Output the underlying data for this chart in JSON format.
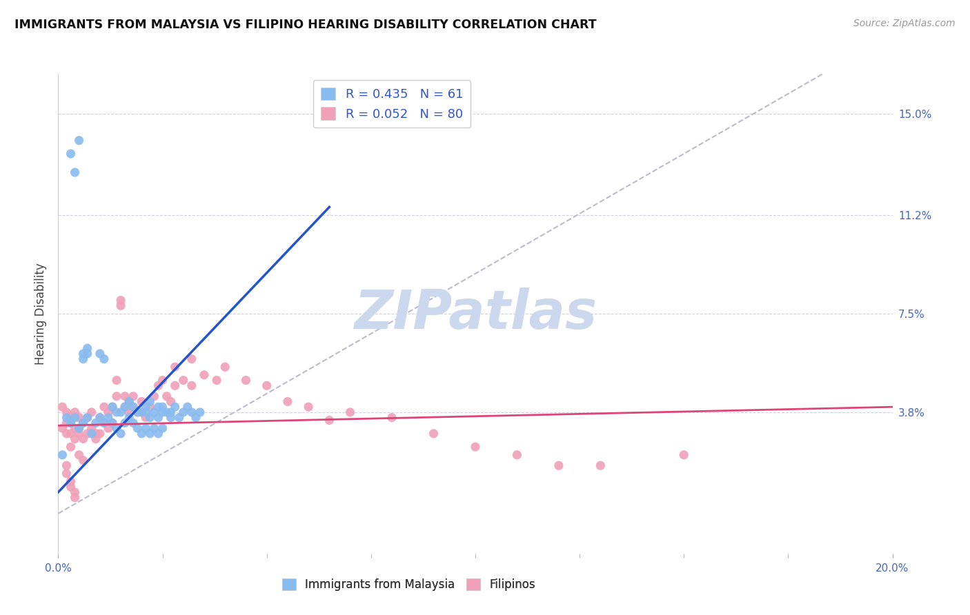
{
  "title": "IMMIGRANTS FROM MALAYSIA VS FILIPINO HEARING DISABILITY CORRELATION CHART",
  "source": "Source: ZipAtlas.com",
  "ylabel": "Hearing Disability",
  "xlim": [
    0.0,
    0.2
  ],
  "ylim": [
    -0.015,
    0.165
  ],
  "xtick_labels_shown": [
    "0.0%",
    "20.0%"
  ],
  "xtick_values_shown": [
    0.0,
    0.2
  ],
  "xtick_minor_values": [
    0.025,
    0.05,
    0.075,
    0.1,
    0.125,
    0.15,
    0.175
  ],
  "ytick_right_labels": [
    "15.0%",
    "11.2%",
    "7.5%",
    "3.8%"
  ],
  "ytick_right_values": [
    0.15,
    0.112,
    0.075,
    0.038
  ],
  "grid_color": "#d0d0e0",
  "background_color": "#ffffff",
  "malaysia_color": "#88bbee",
  "filipino_color": "#f0a0b8",
  "malaysia_trend_color": "#2255cc",
  "filipino_trend_color": "#dd4477",
  "diag_color": "#bbbbcc",
  "malaysia_R": 0.435,
  "malaysia_N": 61,
  "filipino_R": 0.052,
  "filipino_N": 80,
  "watermark": "ZIPatlas",
  "watermark_color": "#ccd8ee",
  "legend_label_malaysia": "Immigrants from Malaysia",
  "legend_label_filipino": "Filipinos",
  "malaysia_scatter_x": [
    0.001,
    0.01,
    0.011,
    0.013,
    0.014,
    0.015,
    0.016,
    0.017,
    0.018,
    0.019,
    0.02,
    0.021,
    0.021,
    0.022,
    0.022,
    0.023,
    0.024,
    0.024,
    0.025,
    0.025,
    0.026,
    0.027,
    0.027,
    0.028,
    0.029,
    0.03,
    0.031,
    0.032,
    0.033,
    0.034,
    0.002,
    0.003,
    0.004,
    0.005,
    0.006,
    0.007,
    0.008,
    0.009,
    0.01,
    0.011,
    0.012,
    0.013,
    0.014,
    0.015,
    0.016,
    0.017,
    0.018,
    0.019,
    0.02,
    0.021,
    0.022,
    0.023,
    0.024,
    0.025,
    0.003,
    0.004,
    0.005,
    0.006,
    0.006,
    0.007,
    0.007
  ],
  "malaysia_scatter_y": [
    0.022,
    0.06,
    0.058,
    0.04,
    0.038,
    0.038,
    0.04,
    0.042,
    0.04,
    0.038,
    0.038,
    0.04,
    0.038,
    0.036,
    0.042,
    0.038,
    0.04,
    0.036,
    0.038,
    0.04,
    0.038,
    0.038,
    0.036,
    0.04,
    0.036,
    0.038,
    0.04,
    0.038,
    0.036,
    0.038,
    0.036,
    0.034,
    0.036,
    0.032,
    0.034,
    0.036,
    0.03,
    0.034,
    0.036,
    0.034,
    0.036,
    0.034,
    0.032,
    0.03,
    0.034,
    0.036,
    0.034,
    0.032,
    0.03,
    0.032,
    0.03,
    0.032,
    0.03,
    0.032,
    0.135,
    0.128,
    0.14,
    0.06,
    0.058,
    0.062,
    0.06
  ],
  "filipino_scatter_x": [
    0.001,
    0.001,
    0.002,
    0.002,
    0.002,
    0.003,
    0.003,
    0.003,
    0.004,
    0.004,
    0.005,
    0.005,
    0.005,
    0.006,
    0.006,
    0.007,
    0.007,
    0.008,
    0.008,
    0.009,
    0.009,
    0.01,
    0.01,
    0.011,
    0.011,
    0.012,
    0.012,
    0.013,
    0.013,
    0.014,
    0.014,
    0.015,
    0.015,
    0.016,
    0.016,
    0.017,
    0.017,
    0.018,
    0.018,
    0.019,
    0.02,
    0.02,
    0.021,
    0.022,
    0.023,
    0.024,
    0.025,
    0.026,
    0.027,
    0.028,
    0.03,
    0.032,
    0.035,
    0.038,
    0.04,
    0.045,
    0.05,
    0.055,
    0.06,
    0.065,
    0.07,
    0.08,
    0.09,
    0.1,
    0.11,
    0.12,
    0.13,
    0.15,
    0.028,
    0.032,
    0.003,
    0.004,
    0.005,
    0.006,
    0.002,
    0.002,
    0.003,
    0.003,
    0.004,
    0.004
  ],
  "filipino_scatter_y": [
    0.04,
    0.032,
    0.038,
    0.03,
    0.034,
    0.036,
    0.03,
    0.034,
    0.038,
    0.032,
    0.036,
    0.03,
    0.032,
    0.034,
    0.028,
    0.036,
    0.03,
    0.038,
    0.032,
    0.03,
    0.028,
    0.036,
    0.03,
    0.04,
    0.034,
    0.038,
    0.032,
    0.04,
    0.034,
    0.05,
    0.044,
    0.078,
    0.08,
    0.04,
    0.044,
    0.042,
    0.038,
    0.04,
    0.044,
    0.038,
    0.038,
    0.042,
    0.036,
    0.04,
    0.044,
    0.048,
    0.05,
    0.044,
    0.042,
    0.048,
    0.05,
    0.048,
    0.052,
    0.05,
    0.055,
    0.05,
    0.048,
    0.042,
    0.04,
    0.035,
    0.038,
    0.036,
    0.03,
    0.025,
    0.022,
    0.018,
    0.018,
    0.022,
    0.055,
    0.058,
    0.025,
    0.028,
    0.022,
    0.02,
    0.018,
    0.015,
    0.012,
    0.01,
    0.008,
    0.006
  ],
  "malaysia_trend_x": [
    0.0,
    0.065
  ],
  "malaysia_trend_y": [
    0.008,
    0.115
  ],
  "filipino_trend_x": [
    0.0,
    0.2
  ],
  "filipino_trend_y": [
    0.033,
    0.04
  ]
}
